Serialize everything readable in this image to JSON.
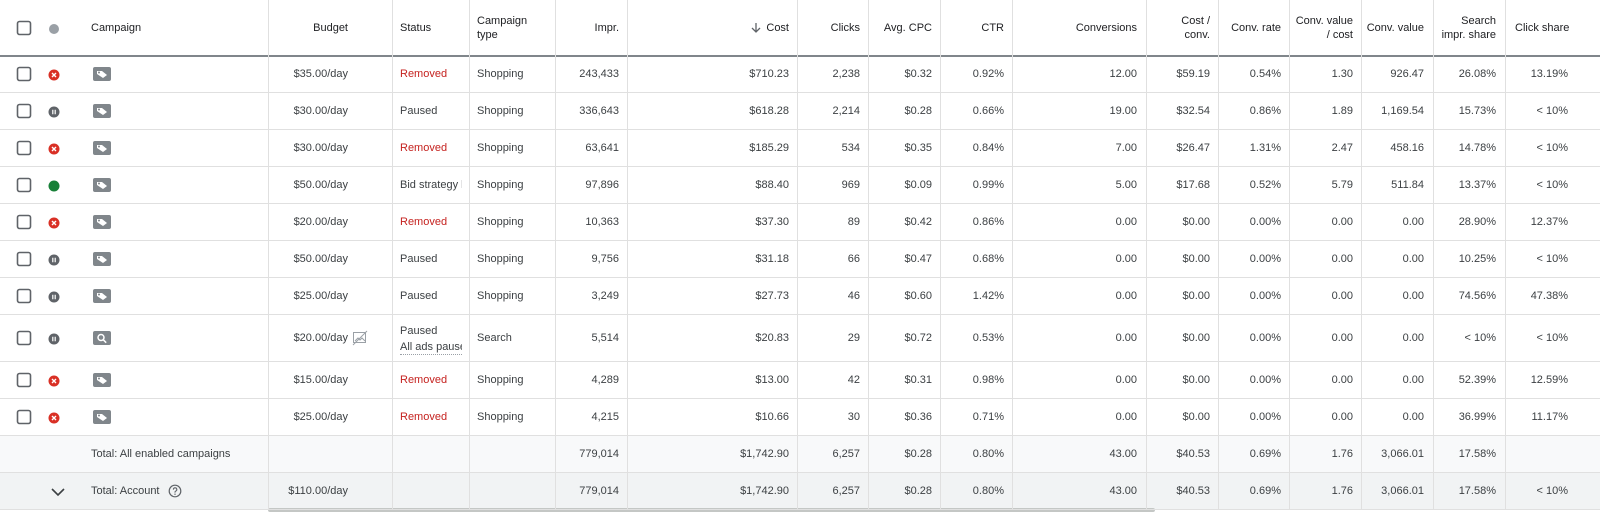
{
  "table": {
    "columns": [
      "Campaign",
      "Budget",
      "Status",
      [
        "Campaign",
        "type"
      ],
      "Impr.",
      "Cost",
      "Clicks",
      "Avg. CPC",
      "CTR",
      "Conversions",
      [
        "Cost /",
        "conv."
      ],
      "Conv. rate",
      [
        "Conv. value",
        "/ cost"
      ],
      "Conv. value",
      [
        "Search",
        "impr. share"
      ],
      "Click share"
    ],
    "rows": [
      [
        null,
        "$35.00/day",
        "Removed",
        "Shopping",
        "243,433",
        "$710.23",
        "2,238",
        "$0.32",
        "0.92%",
        "12.00",
        "$59.19",
        "0.54%",
        "1.30",
        "926.47",
        "26.08%",
        "13.19%"
      ],
      [
        null,
        "$30.00/day",
        "Paused",
        "Shopping",
        "336,643",
        "$618.28",
        "2,214",
        "$0.28",
        "0.66%",
        "19.00",
        "$32.54",
        "0.86%",
        "1.89",
        "1,169.54",
        "15.73%",
        "< 10%"
      ],
      [
        null,
        "$30.00/day",
        "Removed",
        "Shopping",
        "63,641",
        "$185.29",
        "534",
        "$0.35",
        "0.84%",
        "7.00",
        "$26.47",
        "1.31%",
        "2.47",
        "458.16",
        "14.78%",
        "< 10%"
      ],
      [
        null,
        "$50.00/day",
        "Bid strategy l",
        "Shopping",
        "97,896",
        "$88.40",
        "969",
        "$0.09",
        "0.99%",
        "5.00",
        "$17.68",
        "0.52%",
        "5.79",
        "511.84",
        "13.37%",
        "< 10%"
      ],
      [
        null,
        "$20.00/day",
        "Removed",
        "Shopping",
        "10,363",
        "$37.30",
        "89",
        "$0.42",
        "0.86%",
        "0.00",
        "$0.00",
        "0.00%",
        "0.00",
        "0.00",
        "28.90%",
        "12.37%"
      ],
      [
        null,
        "$50.00/day",
        "Paused",
        "Shopping",
        "9,756",
        "$31.18",
        "66",
        "$0.47",
        "0.68%",
        "0.00",
        "$0.00",
        "0.00%",
        "0.00",
        "0.00",
        "10.25%",
        "< 10%"
      ],
      [
        null,
        "$25.00/day",
        "Paused",
        "Shopping",
        "3,249",
        "$27.73",
        "46",
        "$0.60",
        "1.42%",
        "0.00",
        "$0.00",
        "0.00%",
        "0.00",
        "0.00",
        "74.56%",
        "47.38%"
      ],
      [
        null,
        "$20.00/day",
        [
          "Paused",
          "All ads pause"
        ],
        "Search",
        "5,514",
        "$20.83",
        "29",
        "$0.72",
        "0.53%",
        "0.00",
        "$0.00",
        "0.00%",
        "0.00",
        "0.00",
        "< 10%",
        "< 10%"
      ],
      [
        null,
        "$15.00/day",
        "Removed",
        "Shopping",
        "4,289",
        "$13.00",
        "42",
        "$0.31",
        "0.98%",
        "0.00",
        "$0.00",
        "0.00%",
        "0.00",
        "0.00",
        "52.39%",
        "12.59%"
      ],
      [
        null,
        "$25.00/day",
        "Removed",
        "Shopping",
        "4,215",
        "$10.66",
        "30",
        "$0.36",
        "0.71%",
        "0.00",
        "$0.00",
        "0.00%",
        "0.00",
        "0.00",
        "36.99%",
        "11.17%"
      ]
    ],
    "totals": [
      [
        "Total: All enabled campaigns",
        null,
        null,
        null,
        "779,014",
        "$1,742.90",
        "6,257",
        "$0.28",
        "0.80%",
        "43.00",
        "$40.53",
        "0.69%",
        "1.76",
        "3,066.01",
        "17.58%",
        null
      ],
      [
        "Total: Account",
        "$110.00/day",
        null,
        null,
        "779,014",
        "$1,742.90",
        "6,257",
        "$0.28",
        "0.80%",
        "43.00",
        "$40.53",
        "0.69%",
        "1.76",
        "3,066.01",
        "17.58%",
        "< 10%"
      ]
    ]
  }
}
